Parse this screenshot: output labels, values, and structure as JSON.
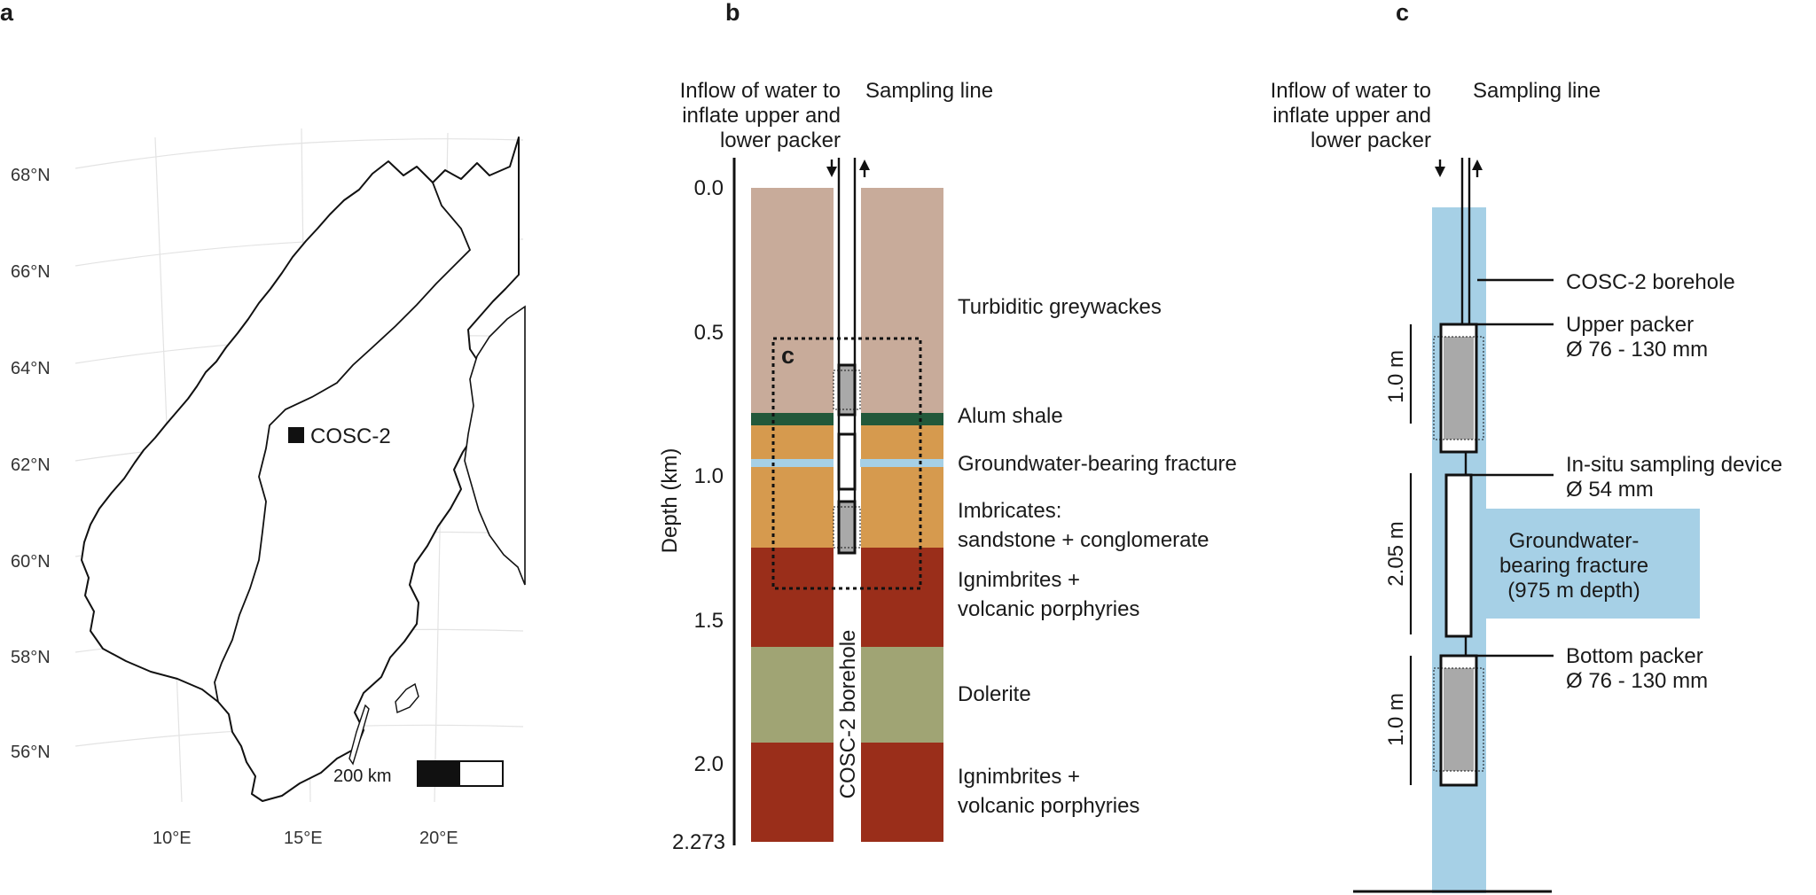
{
  "panels": {
    "a": "a",
    "b": "b",
    "c": "c"
  },
  "map": {
    "lat_labels": [
      "68°N",
      "66°N",
      "64°N",
      "62°N",
      "60°N",
      "58°N",
      "56°N"
    ],
    "lon_labels": [
      "10°E",
      "15°E",
      "20°E"
    ],
    "site_label": "COSC-2",
    "scale_label": "200 km"
  },
  "borehole": {
    "inflow_label": [
      "Inflow of water to",
      "inflate upper and",
      "lower packer"
    ],
    "sampling_label": "Sampling line",
    "axis_title": "Depth (km)",
    "depth_ticks": [
      "0.0",
      "0.5",
      "1.0",
      "1.5",
      "2.0",
      "2.273"
    ],
    "borehole_label": "COSC-2 borehole",
    "inset_label": "c",
    "colors": {
      "greywacke": "#c8ab9a",
      "alum_shale": "#22583a",
      "imbricates": "#d69a4e",
      "fracture": "#a6d0e6",
      "ignimbrite": "#9a2e1a",
      "dolerite": "#a0a474"
    },
    "layers": [
      {
        "lines": [
          "Turbiditic greywackes"
        ]
      },
      {
        "lines": [
          "Alum shale"
        ]
      },
      {
        "lines": [
          "Groundwater-bearing fracture"
        ]
      },
      {
        "lines": [
          "Imbricates:",
          "sandstone + conglomerate"
        ]
      },
      {
        "lines": [
          "Ignimbrites +",
          "volcanic porphyries"
        ]
      },
      {
        "lines": [
          "Dolerite"
        ]
      },
      {
        "lines": [
          "Ignimbrites +",
          "volcanic porphyries"
        ]
      }
    ]
  },
  "device": {
    "inflow_label": [
      "Inflow of water to",
      "inflate upper and",
      "lower packer"
    ],
    "sampling_label": "Sampling line",
    "borehole_label": "COSC-2 borehole",
    "upper_packer": [
      "Upper packer",
      "Ø 76 - 130 mm"
    ],
    "sampler": [
      "In-situ sampling device",
      "Ø 54 mm"
    ],
    "fracture": [
      "Groundwater-",
      "bearing fracture",
      "(975 m depth)"
    ],
    "bottom_packer": [
      "Bottom packer",
      "Ø 76 - 130 mm"
    ],
    "dims": [
      "1.0 m",
      "2.05 m",
      "1.0 m"
    ],
    "colors": {
      "water": "#a6d0e6",
      "packer": "#a9a9a9"
    }
  }
}
